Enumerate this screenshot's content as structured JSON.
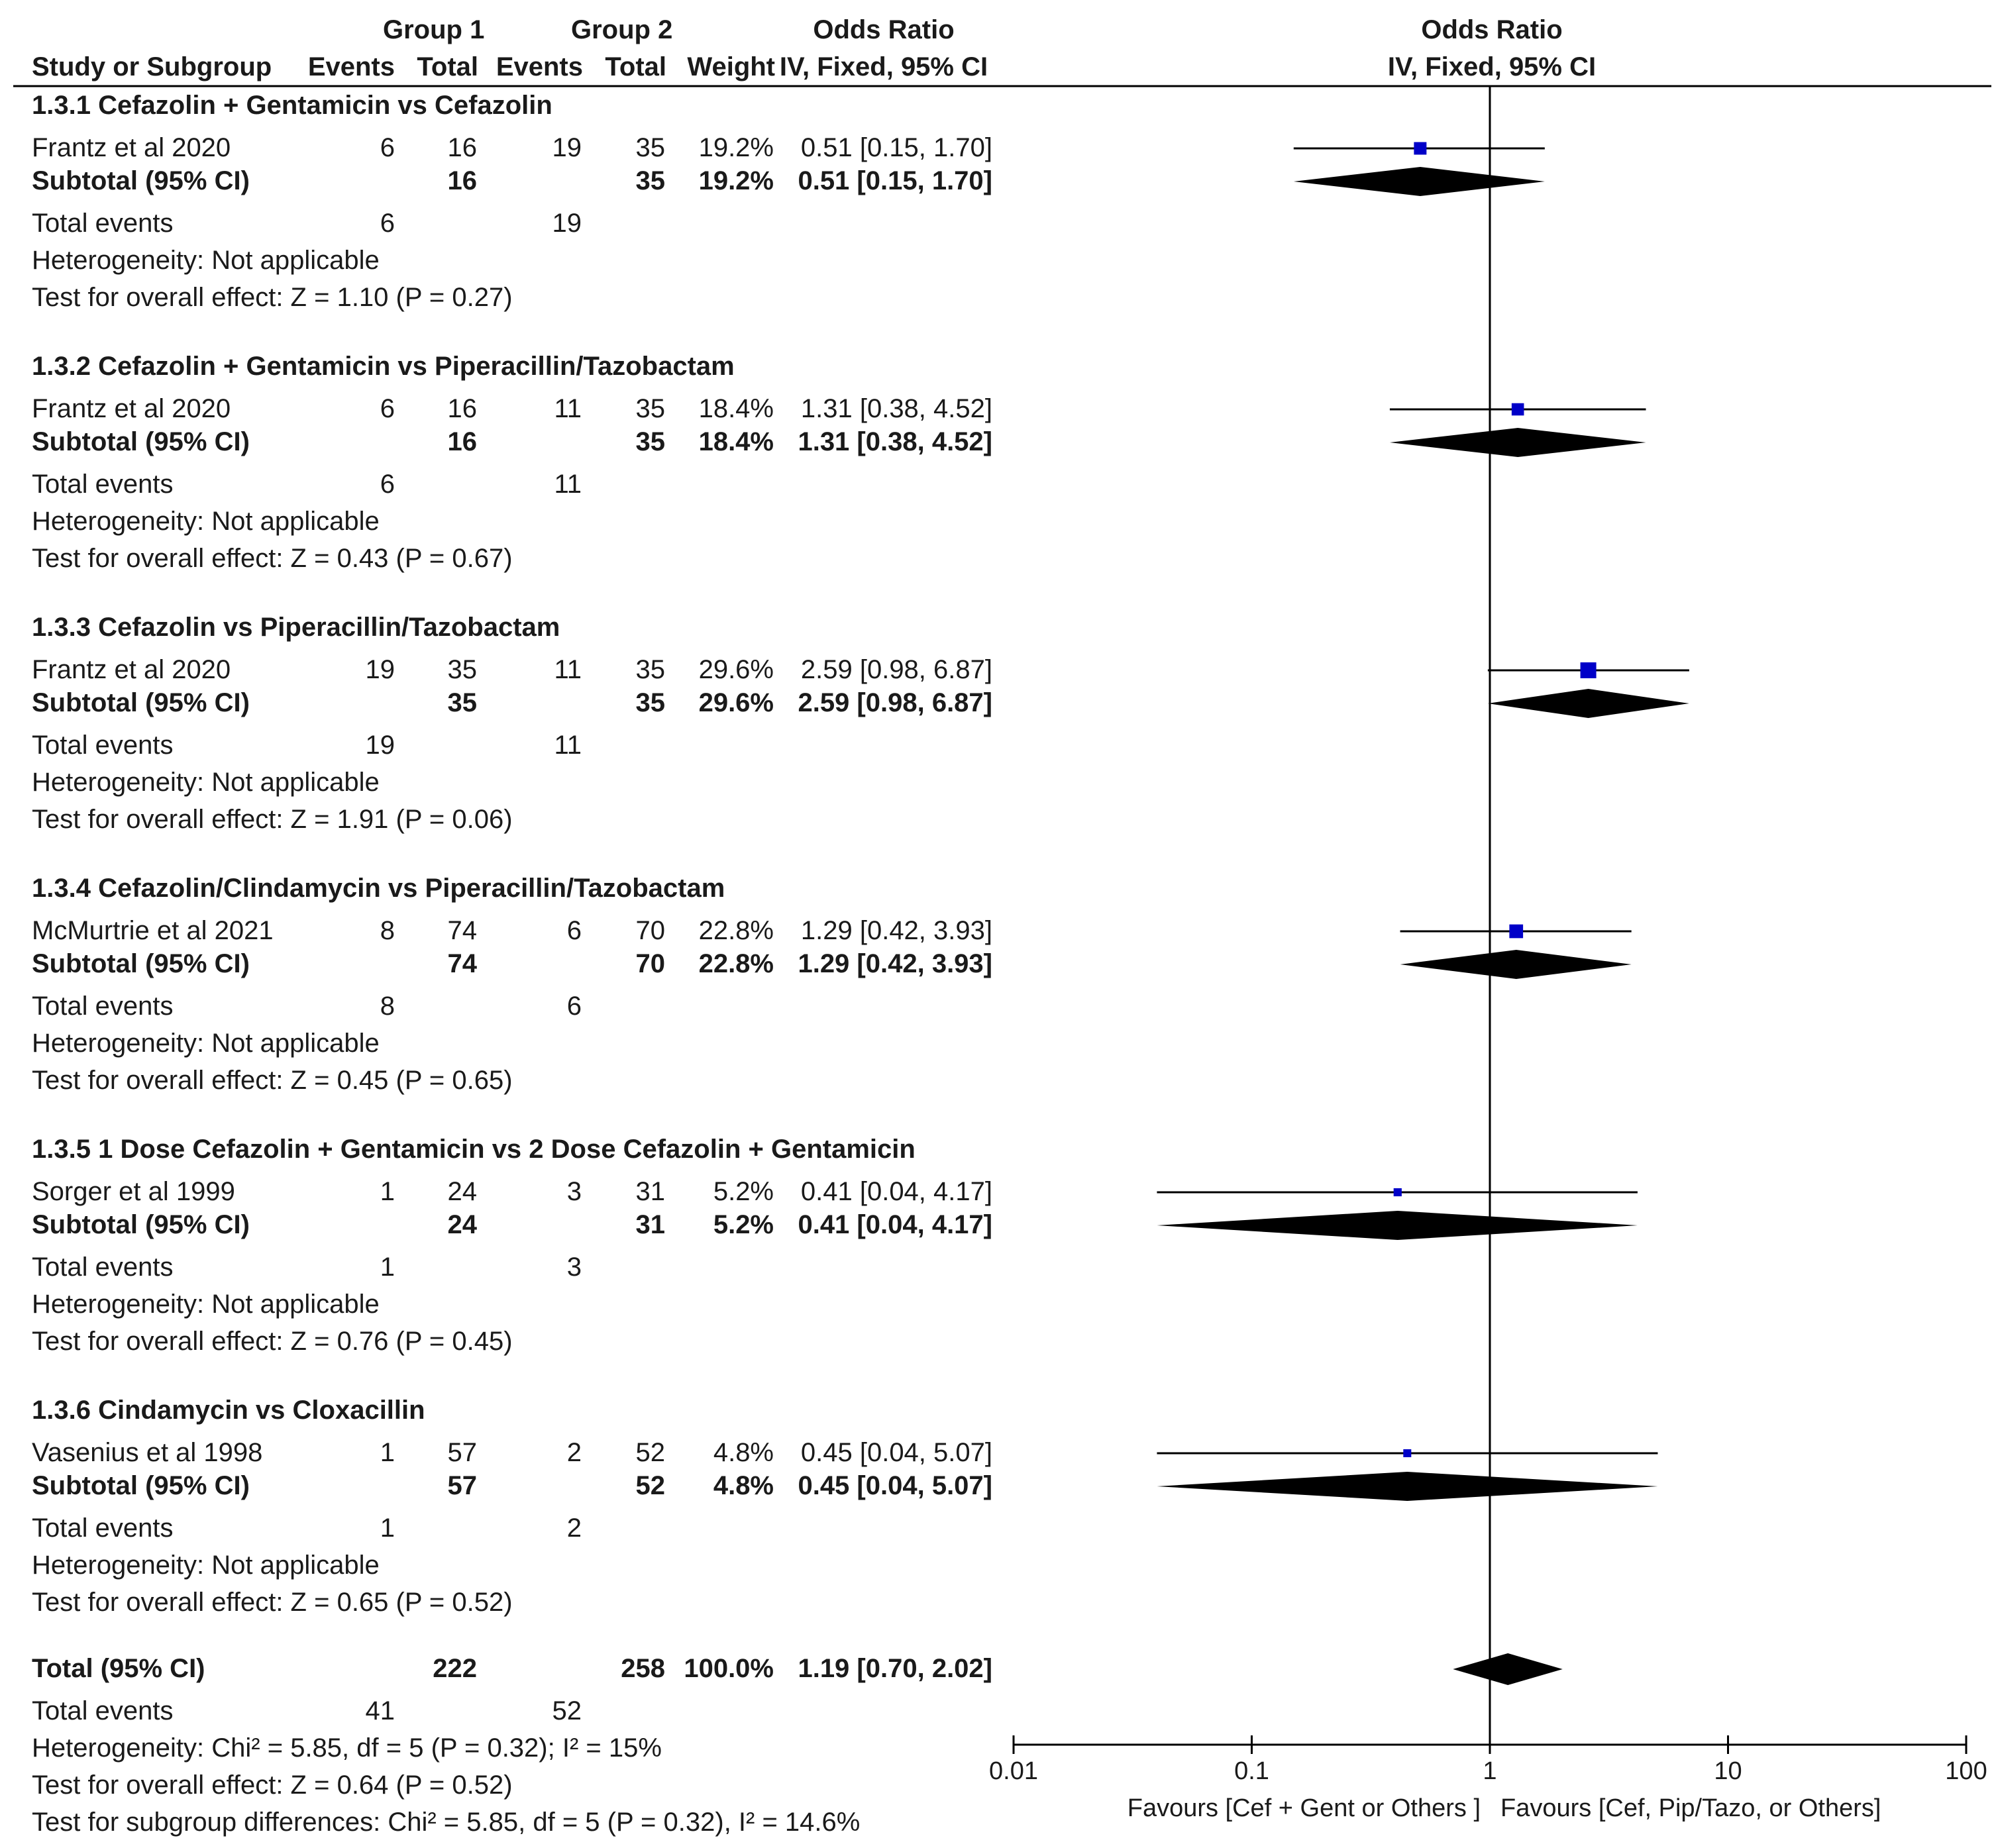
{
  "chart_data": {
    "type": "forest",
    "header": {
      "group1": "Group 1",
      "group2": "Group 2",
      "or_left": "Odds Ratio",
      "or_right": "Odds Ratio",
      "study": "Study or Subgroup",
      "events1": "Events",
      "total1": "Total",
      "events2": "Events",
      "total2": "Total",
      "weight": "Weight",
      "method_left": "IV, Fixed, 95% CI",
      "method_right": "IV, Fixed, 95% CI"
    },
    "subgroups": [
      {
        "title": "1.3.1 Cefazolin + Gentamicin vs Cefazolin",
        "study": {
          "name": "Frantz et al 2020",
          "e1": "6",
          "t1": "16",
          "e2": "19",
          "t2": "35",
          "weight": "19.2%",
          "ci": "0.51 [0.15, 1.70]",
          "or": 0.51,
          "lo": 0.15,
          "hi": 1.7,
          "w": 19.2
        },
        "subtotal": {
          "label": "Subtotal (95% CI)",
          "t1": "16",
          "t2": "35",
          "weight": "19.2%",
          "ci": "0.51 [0.15, 1.70]",
          "or": 0.51,
          "lo": 0.15,
          "hi": 1.7
        },
        "events": {
          "label": "Total events",
          "e1": "6",
          "e2": "19"
        },
        "heterogeneity": "Heterogeneity: Not applicable",
        "overall": "Test for overall effect: Z = 1.10 (P = 0.27)"
      },
      {
        "title": "1.3.2 Cefazolin + Gentamicin vs Piperacillin/Tazobactam",
        "study": {
          "name": "Frantz et al 2020",
          "e1": "6",
          "t1": "16",
          "e2": "11",
          "t2": "35",
          "weight": "18.4%",
          "ci": "1.31 [0.38, 4.52]",
          "or": 1.31,
          "lo": 0.38,
          "hi": 4.52,
          "w": 18.4
        },
        "subtotal": {
          "label": "Subtotal (95% CI)",
          "t1": "16",
          "t2": "35",
          "weight": "18.4%",
          "ci": "1.31 [0.38, 4.52]",
          "or": 1.31,
          "lo": 0.38,
          "hi": 4.52
        },
        "events": {
          "label": "Total events",
          "e1": "6",
          "e2": "11"
        },
        "heterogeneity": "Heterogeneity: Not applicable",
        "overall": "Test for overall effect: Z = 0.43 (P = 0.67)"
      },
      {
        "title": "1.3.3 Cefazolin vs Piperacillin/Tazobactam",
        "study": {
          "name": "Frantz et al 2020",
          "e1": "19",
          "t1": "35",
          "e2": "11",
          "t2": "35",
          "weight": "29.6%",
          "ci": "2.59 [0.98, 6.87]",
          "or": 2.59,
          "lo": 0.98,
          "hi": 6.87,
          "w": 29.6
        },
        "subtotal": {
          "label": "Subtotal (95% CI)",
          "t1": "35",
          "t2": "35",
          "weight": "29.6%",
          "ci": "2.59 [0.98, 6.87]",
          "or": 2.59,
          "lo": 0.98,
          "hi": 6.87
        },
        "events": {
          "label": "Total events",
          "e1": "19",
          "e2": "11"
        },
        "heterogeneity": "Heterogeneity: Not applicable",
        "overall": "Test for overall effect: Z = 1.91 (P = 0.06)"
      },
      {
        "title": "1.3.4 Cefazolin/Clindamycin vs Piperacillin/Tazobactam",
        "study": {
          "name": "McMurtrie et al 2021",
          "e1": "8",
          "t1": "74",
          "e2": "6",
          "t2": "70",
          "weight": "22.8%",
          "ci": "1.29 [0.42, 3.93]",
          "or": 1.29,
          "lo": 0.42,
          "hi": 3.93,
          "w": 22.8
        },
        "subtotal": {
          "label": "Subtotal (95% CI)",
          "t1": "74",
          "t2": "70",
          "weight": "22.8%",
          "ci": "1.29 [0.42, 3.93]",
          "or": 1.29,
          "lo": 0.42,
          "hi": 3.93
        },
        "events": {
          "label": "Total events",
          "e1": "8",
          "e2": "6"
        },
        "heterogeneity": "Heterogeneity: Not applicable",
        "overall": "Test for overall effect: Z = 0.45 (P = 0.65)"
      },
      {
        "title": "1.3.5 1 Dose Cefazolin + Gentamicin vs 2 Dose Cefazolin + Gentamicin",
        "study": {
          "name": "Sorger et al 1999",
          "e1": "1",
          "t1": "24",
          "e2": "3",
          "t2": "31",
          "weight": "5.2%",
          "ci": "0.41 [0.04, 4.17]",
          "or": 0.41,
          "lo": 0.04,
          "hi": 4.17,
          "w": 5.2
        },
        "subtotal": {
          "label": "Subtotal (95% CI)",
          "t1": "24",
          "t2": "31",
          "weight": "5.2%",
          "ci": "0.41 [0.04, 4.17]",
          "or": 0.41,
          "lo": 0.04,
          "hi": 4.17
        },
        "events": {
          "label": "Total events",
          "e1": "1",
          "e2": "3"
        },
        "heterogeneity": "Heterogeneity: Not applicable",
        "overall": "Test for overall effect: Z = 0.76 (P = 0.45)"
      },
      {
        "title": "1.3.6 Cindamycin vs Cloxacillin",
        "study": {
          "name": "Vasenius et al 1998",
          "e1": "1",
          "t1": "57",
          "e2": "2",
          "t2": "52",
          "weight": "4.8%",
          "ci": "0.45 [0.04, 5.07]",
          "or": 0.45,
          "lo": 0.04,
          "hi": 5.07,
          "w": 4.8
        },
        "subtotal": {
          "label": "Subtotal (95% CI)",
          "t1": "57",
          "t2": "52",
          "weight": "4.8%",
          "ci": "0.45 [0.04, 5.07]",
          "or": 0.45,
          "lo": 0.04,
          "hi": 5.07
        },
        "events": {
          "label": "Total events",
          "e1": "1",
          "e2": "2"
        },
        "heterogeneity": "Heterogeneity: Not applicable",
        "overall": "Test for overall effect: Z = 0.65 (P = 0.52)"
      }
    ],
    "total": {
      "label": "Total (95% CI)",
      "t1": "222",
      "t2": "258",
      "weight": "100.0%",
      "ci": "1.19 [0.70, 2.02]",
      "or": 1.19,
      "lo": 0.7,
      "hi": 2.02,
      "events": {
        "label": "Total events",
        "e1": "41",
        "e2": "52"
      },
      "heterogeneity": "Heterogeneity: Chi² = 5.85, df = 5 (P = 0.32); I² = 15%",
      "overall": "Test for overall effect: Z = 0.64 (P = 0.52)",
      "subgroup_diff": "Test for subgroup differences: Chi² = 5.85, df = 5 (P = 0.32), I² = 14.6%"
    },
    "axis": {
      "scale": "log",
      "xlim": [
        0.01,
        100
      ],
      "ticks": [
        0.01,
        0.1,
        1,
        10,
        100
      ],
      "tick_labels": [
        "0.01",
        "0.1",
        "1",
        "10",
        "100"
      ],
      "favours_left": "Favours [Cef + Gent or Others ]",
      "favours_right": "Favours [Cef, Pip/Tazo, or Others]"
    },
    "colors": {
      "square": "#0000c8",
      "diamond": "#000000",
      "line": "#000000",
      "text": "#1a1a1a"
    }
  }
}
